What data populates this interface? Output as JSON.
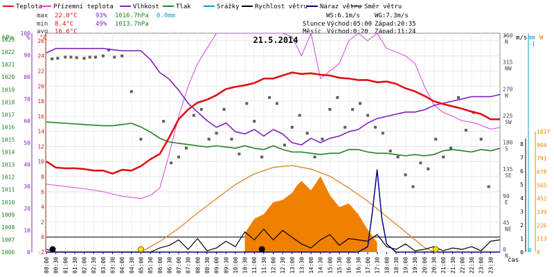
{
  "chart_data": {
    "type": "line",
    "title": "21.5.2014",
    "legend": [
      {
        "label": "Teplota",
        "color": "#e01010"
      },
      {
        "label": "Přízemní teplota",
        "color": "#e040e0"
      },
      {
        "label": "Vlhkost",
        "color": "#8020c0"
      },
      {
        "label": "Tlak",
        "color": "#208020"
      },
      {
        "label": "Srážky",
        "color": "#00a0d0"
      },
      {
        "label": "Rychlost větru",
        "color": "#000000"
      },
      {
        "label": "Náraz větru",
        "color": "#00008b"
      },
      {
        "label": "Směr větru",
        "color": "#606060"
      }
    ],
    "stats": {
      "max": {
        "label": "max",
        "temp": "22.0°C",
        "hum": "93%",
        "press": "1016.7hPa",
        "rain": "0.0mm"
      },
      "min": {
        "label": "min",
        "temp": "8.4°C",
        "hum": "49%",
        "press": "1013.7hPa"
      },
      "avg": {
        "label": "avg",
        "temp": "16.6°C"
      }
    },
    "info": {
      "ws": "WS:6.1m/s",
      "wg": "WG:7.3m/s",
      "sun_label": "Slunce",
      "sunrise": "Východ:05:00",
      "sunset": "Západ:20:35",
      "moon_label": "Měsíc",
      "moonrise": "Východ:0:20",
      "moonset": "Západ:11:24"
    },
    "x_label": "čas",
    "x_ticks": [
      "00:00",
      "00:30",
      "01:00",
      "01:30",
      "02:00",
      "02:30",
      "03:00",
      "03:30",
      "04:00",
      "04:30",
      "05:00",
      "05:30",
      "06:00",
      "06:30",
      "07:00",
      "07:30",
      "08:00",
      "08:30",
      "09:00",
      "09:30",
      "10:00",
      "10:30",
      "11:00",
      "11:30",
      "12:00",
      "12:30",
      "13:00",
      "13:30",
      "14:00",
      "14:30",
      "15:00",
      "15:30",
      "16:00",
      "16:30",
      "17:00",
      "17:30",
      "18:00",
      "18:30",
      "19:00",
      "19:30",
      "20:00",
      "20:30",
      "21:00",
      "21:30",
      "22:00",
      "22:30",
      "23:00",
      "23:30"
    ],
    "axes": {
      "hpa": {
        "unit": "hPa",
        "ticks": [
          "1006",
          "1007",
          "1008",
          "1009",
          "1010",
          "1011",
          "1012",
          "1013",
          "1014",
          "1015",
          "1016",
          "1017",
          "1018",
          "1019",
          "1020",
          "1021",
          "1022",
          "1023"
        ],
        "range": [
          1006,
          1023.5
        ]
      },
      "pct": {
        "unit": "%",
        "ticks": [
          "0",
          "10",
          "20",
          "30",
          "40",
          "50",
          "60",
          "70",
          "80",
          "90",
          "100"
        ],
        "range": [
          0,
          100
        ]
      },
      "celsius": {
        "unit": "°C",
        "ticks": [
          "-2",
          "0",
          "2",
          "4",
          "6",
          "8",
          "10",
          "12",
          "14",
          "16",
          "18",
          "20",
          "22",
          "24",
          "26"
        ],
        "range": [
          -2,
          27
        ]
      },
      "deg": {
        "unit": "°",
        "ticks": [
          {
            "v": "0",
            "d": "N"
          },
          {
            "v": "45",
            "d": "NE"
          },
          {
            "v": "90",
            "d": "E"
          },
          {
            "v": "135",
            "d": "SE"
          },
          {
            "v": "180",
            "d": "S"
          },
          {
            "v": "225",
            "d": "SW"
          },
          {
            "v": "270",
            "d": "W"
          },
          {
            "v": "315",
            "d": "NW"
          },
          {
            "v": "360",
            "d": "N"
          }
        ],
        "range": [
          0,
          360
        ]
      },
      "ms": {
        "unit": "m/s",
        "ticks": [
          "0",
          "1",
          "2",
          "3",
          "4",
          "5",
          "6",
          "7",
          "8"
        ],
        "range": [
          0,
          8
        ]
      },
      "mm": {
        "unit": "mm",
        "ticks": [
          "-1",
          "0"
        ]
      },
      "wm2": {
        "unit": "W",
        "ticks": [
          "0",
          "113",
          "226",
          "339",
          "452",
          "565",
          "678",
          "791",
          "904",
          "1017"
        ],
        "range": [
          0,
          1017
        ]
      }
    },
    "series": [
      {
        "name": "Teplota",
        "axis": "celsius",
        "color": "#e01010",
        "x": [
          0,
          0.5,
          1,
          1.5,
          2,
          2.5,
          3,
          3.5,
          4,
          4.5,
          5,
          5.5,
          6,
          6.5,
          7,
          7.5,
          8,
          8.5,
          9,
          9.5,
          10,
          10.5,
          11,
          11.5,
          12,
          12.5,
          13,
          13.5,
          14,
          14.5,
          15,
          15.5,
          16,
          16.5,
          17,
          17.5,
          18,
          18.5,
          19,
          19.5,
          20,
          20.5,
          21,
          21.5,
          22,
          22.5,
          23,
          23.5,
          24
        ],
        "y": [
          10,
          9.2,
          9.1,
          9.1,
          9.0,
          8.8,
          8.8,
          8.4,
          8.9,
          8.8,
          9.4,
          10.3,
          11.0,
          13.2,
          15.6,
          16.9,
          17.8,
          18.2,
          18.8,
          19.6,
          19.9,
          20.1,
          20.4,
          21.0,
          21.0,
          21.4,
          21.8,
          21.6,
          21.7,
          21.5,
          21.4,
          21.1,
          21.0,
          20.8,
          20.8,
          20.5,
          20.6,
          20.3,
          19.7,
          19.3,
          18.7,
          18.0,
          17.6,
          17.3,
          17.0,
          16.6,
          16.3,
          15.6,
          15.6
        ]
      },
      {
        "name": "Přízemní teplota",
        "axis": "celsius",
        "color": "#e040e0",
        "x": [
          0,
          1,
          2,
          3,
          4,
          5,
          5.5,
          6,
          6.5,
          7,
          7.5,
          8,
          8.5,
          9,
          9.5,
          10,
          10.5,
          11,
          11.5,
          12,
          12.5,
          13,
          13.5,
          14,
          14.5,
          15,
          15.5,
          16,
          16.5,
          17,
          17.5,
          18,
          18.5,
          19,
          19.5,
          20,
          20.5,
          21,
          21.5,
          22,
          22.5,
          23,
          23.5,
          24
        ],
        "y": [
          7,
          6.7,
          6.4,
          6.0,
          5.4,
          5.1,
          5.5,
          6.5,
          11,
          16,
          20,
          23,
          25,
          27,
          27,
          27,
          27,
          27,
          27,
          27,
          27,
          26.5,
          24,
          27,
          21,
          22,
          23,
          26,
          27,
          26,
          27,
          25,
          24.5,
          24,
          23,
          20,
          17.5,
          16.5,
          16,
          15.4,
          15.2,
          14.8,
          14.3,
          14.5
        ]
      },
      {
        "name": "Vlhkost",
        "axis": "pct",
        "color": "#8020c0",
        "x": [
          0,
          0.5,
          1,
          2,
          3,
          4,
          4.5,
          5,
          5.5,
          6,
          6.5,
          7,
          7.5,
          8,
          8.5,
          9,
          9.5,
          10,
          10.5,
          11,
          11.5,
          12,
          12.5,
          13,
          13.5,
          14,
          14.5,
          15,
          15.5,
          16,
          16.5,
          17,
          17.5,
          18,
          18.5,
          19,
          19.5,
          20,
          20.5,
          21,
          21.5,
          22,
          22.5,
          23,
          23.5,
          24
        ],
        "y": [
          91,
          93,
          93,
          93,
          93,
          92,
          92,
          92,
          88,
          82,
          79,
          74,
          68,
          64,
          60,
          57,
          59,
          55,
          54,
          56,
          53,
          56,
          54,
          50,
          49,
          52,
          50,
          52,
          53,
          55,
          56,
          59,
          61,
          62,
          63,
          64,
          64,
          65,
          67,
          68,
          69,
          70,
          71,
          71,
          71,
          72
        ]
      },
      {
        "name": "Tlak",
        "axis": "hpa",
        "color": "#208020",
        "x": [
          0,
          1,
          2,
          3,
          3.5,
          4,
          4.5,
          5,
          5.5,
          6,
          6.5,
          7,
          7.5,
          8,
          8.5,
          9,
          9.5,
          10,
          10.5,
          11,
          11.5,
          12,
          12.5,
          13,
          13.5,
          14,
          14.5,
          15,
          15.5,
          16,
          16.5,
          17,
          17.5,
          18,
          18.5,
          19,
          19.5,
          20,
          20.5,
          21,
          21.5,
          22,
          22.5,
          23,
          23.5,
          24
        ],
        "y": [
          1016.4,
          1016.3,
          1016.2,
          1016.1,
          1016.1,
          1016.2,
          1016.3,
          1016.0,
          1015.6,
          1015.1,
          1014.8,
          1014.7,
          1014.6,
          1014.5,
          1014.4,
          1014.5,
          1014.4,
          1014.3,
          1014.5,
          1014.3,
          1014.2,
          1014.5,
          1014.2,
          1014.0,
          1014.0,
          1013.9,
          1013.8,
          1013.9,
          1013.9,
          1014.2,
          1014.2,
          1014.0,
          1013.9,
          1013.9,
          1013.8,
          1013.7,
          1013.8,
          1013.7,
          1013.8,
          1014.1,
          1014.2,
          1014.1,
          1014.0,
          1014.2,
          1014.1,
          1014.3
        ]
      },
      {
        "name": "Rychlost větru",
        "axis": "ms",
        "color": "#000000",
        "x": [
          0,
          0.5,
          1,
          1.5,
          2,
          2.5,
          3,
          3.5,
          4,
          4.5,
          5,
          5.5,
          6,
          6.5,
          7,
          7.5,
          8,
          8.5,
          9,
          9.5,
          10,
          10.5,
          11,
          11.5,
          12,
          12.5,
          13,
          13.5,
          14,
          14.5,
          15,
          15.5,
          16,
          16.5,
          17,
          17.5,
          18,
          18.5,
          19,
          19.5,
          20,
          20.5,
          21,
          21.5,
          22,
          22.5,
          23,
          23.5,
          24
        ],
        "y": [
          0.2,
          0,
          0,
          0,
          0,
          0,
          0,
          0,
          0,
          0,
          0,
          0,
          0.3,
          0.5,
          0.9,
          0.2,
          1.0,
          0.1,
          0.3,
          0.8,
          0.4,
          1.5,
          0.9,
          1.7,
          0.9,
          1.6,
          1.1,
          0.6,
          0.3,
          0.9,
          1.3,
          0.5,
          1.0,
          0.9,
          0.8,
          1.3,
          0.4,
          0.2,
          0.6,
          0.1,
          0.2,
          0.4,
          0.1,
          0.3,
          0.2,
          0.4,
          0.1,
          0.8,
          0.9
        ]
      },
      {
        "name": "Náraz větru",
        "axis": "ms",
        "color": "#00008b",
        "x": [
          0,
          16.5,
          17,
          17.25,
          17.5,
          17.75,
          18,
          18.5,
          24
        ],
        "y": [
          0,
          0,
          0.4,
          3.0,
          6.1,
          2.5,
          0.6,
          0,
          0
        ]
      },
      {
        "name": "Sluneční záření",
        "axis": "wm2",
        "color": "#f08000",
        "x": [
          10.5,
          11,
          11.5,
          12,
          12.5,
          13,
          13.25,
          13.5,
          14,
          14.5,
          15,
          15.5,
          16,
          16.5,
          17,
          17.5
        ],
        "y": [
          160,
          280,
          320,
          420,
          440,
          500,
          560,
          600,
          520,
          640,
          480,
          380,
          410,
          320,
          190,
          80
        ]
      },
      {
        "name": "Teoretické záření",
        "axis": "wm2",
        "color": "#e08020",
        "x": [
          5,
          6,
          7,
          8,
          9,
          10,
          11,
          12,
          13,
          14,
          15,
          16,
          17,
          18,
          19,
          20,
          20.5
        ],
        "y": [
          0,
          90,
          200,
          330,
          450,
          570,
          660,
          715,
          730,
          700,
          640,
          540,
          430,
          300,
          170,
          40,
          0
        ]
      },
      {
        "name": "Směr větru",
        "axis": "deg",
        "color": "#606060",
        "x": [
          0.3,
          0.6,
          1.0,
          1.3,
          1.6,
          2.0,
          2.3,
          2.6,
          3.0,
          3.3,
          3.6,
          4.0,
          4.5,
          5.0,
          6.2,
          6.6,
          7.0,
          7.4,
          7.8,
          8.2,
          8.6,
          9.0,
          9.4,
          9.8,
          10.2,
          10.6,
          11.0,
          11.4,
          11.8,
          12.2,
          12.6,
          13.0,
          13.4,
          13.8,
          14.2,
          14.6,
          15.0,
          15.4,
          15.8,
          16.2,
          16.6,
          17.0,
          17.4,
          17.8,
          18.2,
          18.6,
          19.0,
          19.4,
          19.8,
          20.2,
          20.6,
          21.0,
          21.4,
          21.8,
          22.2,
          22.6,
          23.0,
          23.4
        ],
        "y": [
          325,
          326,
          328,
          328,
          327,
          326,
          328,
          328,
          330,
          340,
          328,
          330,
          270,
          190,
          220,
          150,
          160,
          175,
          230,
          240,
          190,
          200,
          240,
          190,
          165,
          250,
          220,
          160,
          260,
          250,
          180,
          210,
          230,
          200,
          160,
          190,
          240,
          260,
          210,
          240,
          250,
          230,
          210,
          200,
          170,
          160,
          130,
          110,
          150,
          140,
          190,
          160,
          175,
          260,
          205,
          235,
          190,
          110
        ]
      }
    ]
  }
}
